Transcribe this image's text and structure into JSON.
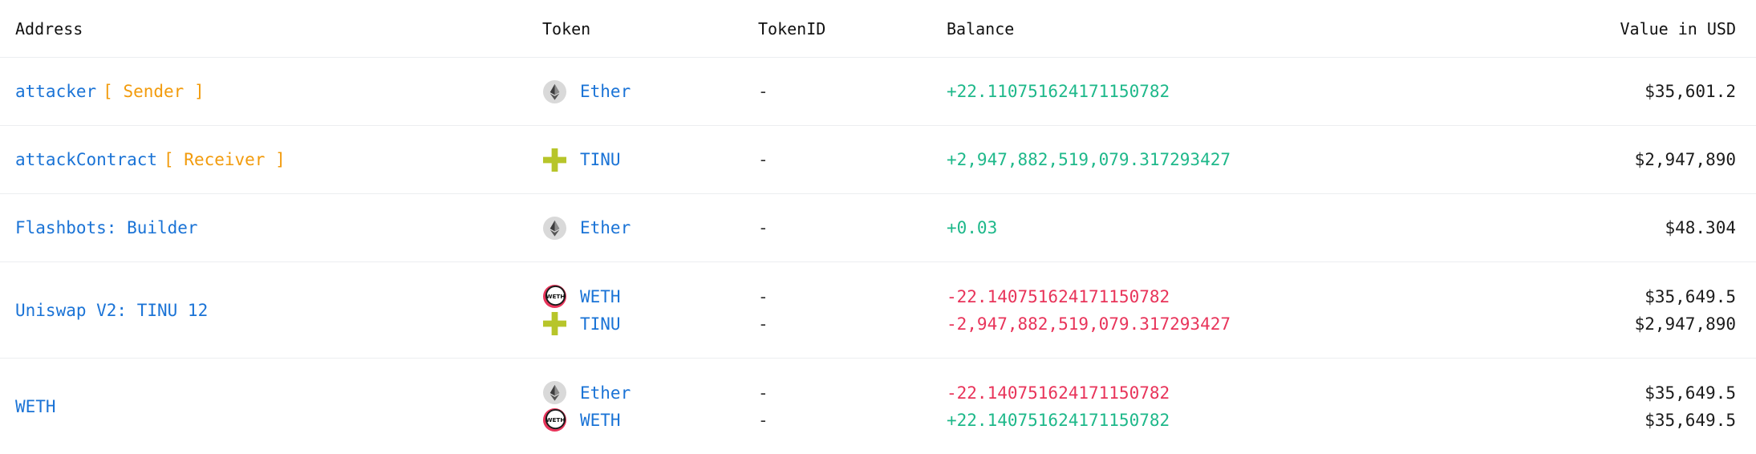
{
  "header": {
    "address": "Address",
    "token": "Token",
    "tokenid": "TokenID",
    "balance": "Balance",
    "value": "Value in USD"
  },
  "rows": [
    {
      "address": "attacker",
      "role": "[ Sender ]",
      "entries": [
        {
          "icon": "ether-icon",
          "token": "Ether",
          "tokenid": "-",
          "balance": "+22.110751624171150782",
          "value": "$35,601.2"
        }
      ]
    },
    {
      "address": "attackContract",
      "role": "[ Receiver ]",
      "entries": [
        {
          "icon": "tinu-icon",
          "token": "TINU",
          "tokenid": "-",
          "balance": "+2,947,882,519,079.317293427",
          "value": "$2,947,890"
        }
      ]
    },
    {
      "address": "Flashbots: Builder",
      "role": "",
      "entries": [
        {
          "icon": "ether-icon",
          "token": "Ether",
          "tokenid": "-",
          "balance": "+0.03",
          "value": "$48.304"
        }
      ]
    },
    {
      "address": "Uniswap V2: TINU 12",
      "role": "",
      "entries": [
        {
          "icon": "weth-icon",
          "token": "WETH",
          "tokenid": "-",
          "balance": "-22.140751624171150782",
          "value": "$35,649.5"
        },
        {
          "icon": "tinu-icon",
          "token": "TINU",
          "tokenid": "-",
          "balance": "-2,947,882,519,079.317293427",
          "value": "$2,947,890"
        }
      ]
    },
    {
      "address": "WETH",
      "role": "",
      "entries": [
        {
          "icon": "ether-icon",
          "token": "Ether",
          "tokenid": "-",
          "balance": "-22.140751624171150782",
          "value": "$35,649.5"
        },
        {
          "icon": "weth-icon",
          "token": "WETH",
          "tokenid": "-",
          "balance": "+22.140751624171150782",
          "value": "$35,649.5"
        }
      ]
    }
  ],
  "colors": {
    "link": "#1a73d6",
    "role": "#f29b0c",
    "positive": "#1eb88a",
    "negative": "#e8345a"
  }
}
